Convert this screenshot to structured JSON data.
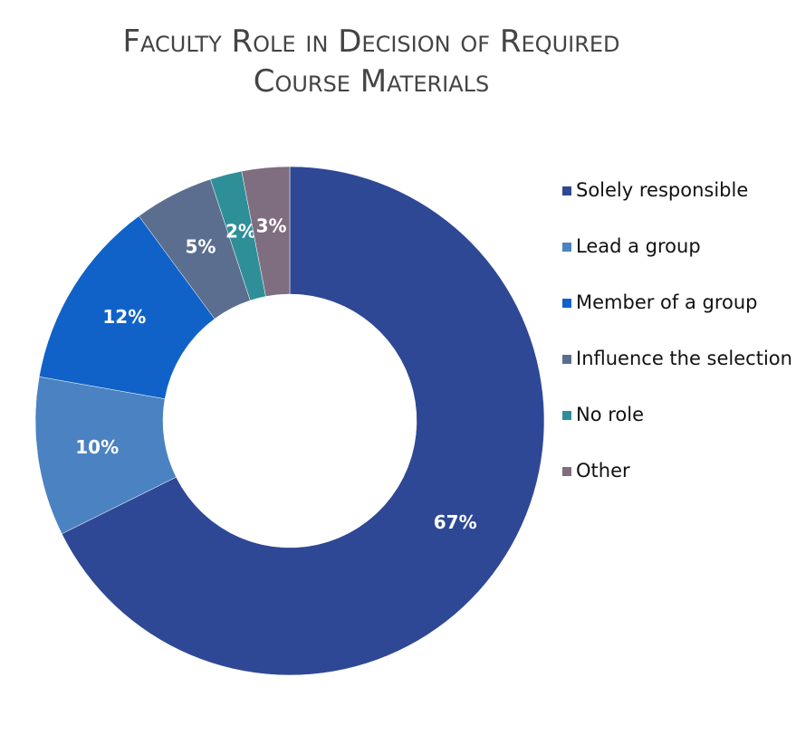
{
  "chart_data": {
    "type": "donut",
    "title": "Faculty Role in Decision of Required Course Materials",
    "categories": [
      "Solely responsible",
      "Lead a group",
      "Member of a group",
      "Influence the selection",
      "No role",
      "Other"
    ],
    "values": [
      67,
      10,
      12,
      5,
      2,
      3
    ],
    "value_labels": [
      "67%",
      "10%",
      "12%",
      "5%",
      "2%",
      "3%"
    ],
    "colors": [
      "#2e4895",
      "#4a82c2",
      "#1062c8",
      "#5b6e8f",
      "#2f8f99",
      "#7f6d80"
    ],
    "legend": "right"
  }
}
